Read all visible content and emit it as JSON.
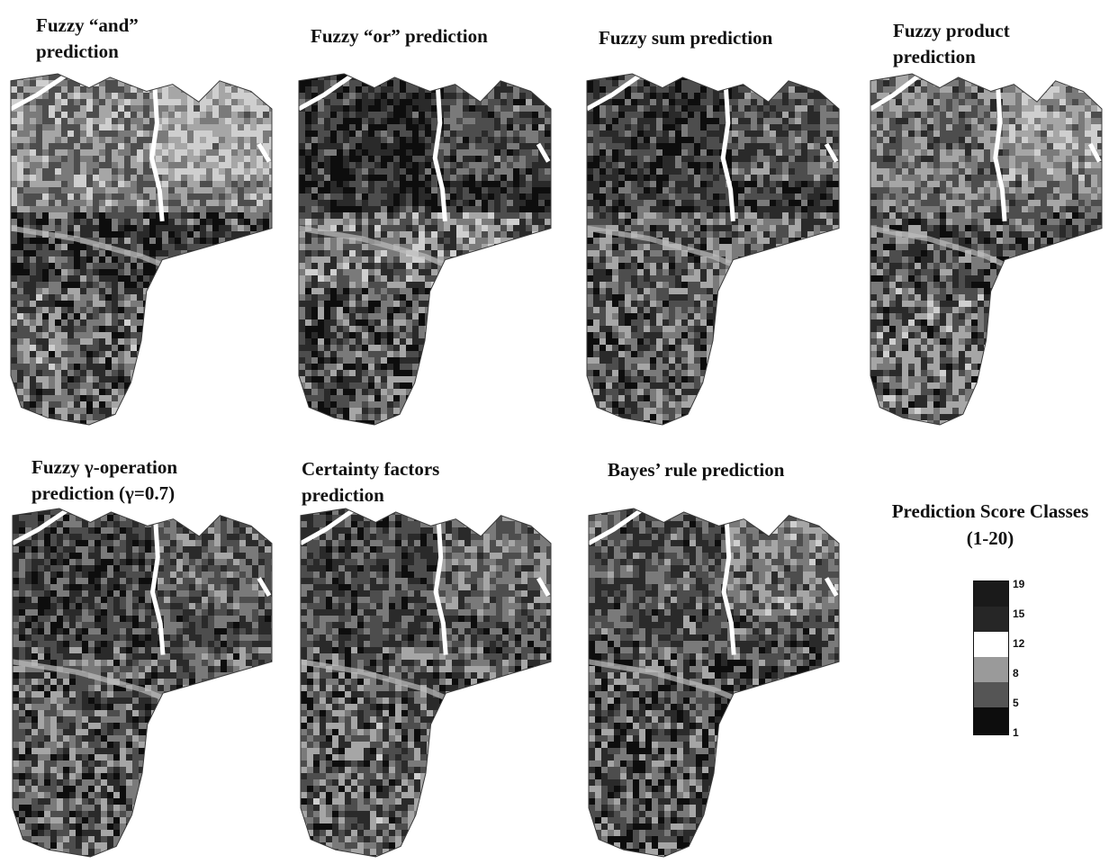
{
  "panels": [
    {
      "title": "Fuzzy “and”\nprediction",
      "tone": [
        0.62,
        0.35,
        0.48
      ]
    },
    {
      "title": "Fuzzy “or” prediction",
      "tone": [
        0.25,
        0.55,
        0.4
      ]
    },
    {
      "title": "Fuzzy sum prediction",
      "tone": [
        0.3,
        0.48,
        0.45
      ]
    },
    {
      "title": "Fuzzy  product\nprediction",
      "tone": [
        0.55,
        0.4,
        0.5
      ]
    },
    {
      "title": "Fuzzy γ-operation\nprediction (γ=0.7)",
      "tone": [
        0.35,
        0.45,
        0.45
      ]
    },
    {
      "title": "Certainty factors\nprediction",
      "tone": [
        0.38,
        0.42,
        0.47
      ]
    },
    {
      "title": "Bayes’ rule prediction",
      "tone": [
        0.42,
        0.38,
        0.4
      ]
    }
  ],
  "legend": {
    "title": "Prediction Score Classes\n(1-20)",
    "classes": [
      {
        "label": "19",
        "color": "#1a1a1a"
      },
      {
        "label": "15",
        "color": "#262626"
      },
      {
        "label": "12",
        "color": "#ffffff"
      },
      {
        "label": "8",
        "color": "#9a9a9a"
      },
      {
        "label": "5",
        "color": "#555555"
      },
      {
        "label": "1",
        "color": "#0d0d0d"
      }
    ]
  }
}
